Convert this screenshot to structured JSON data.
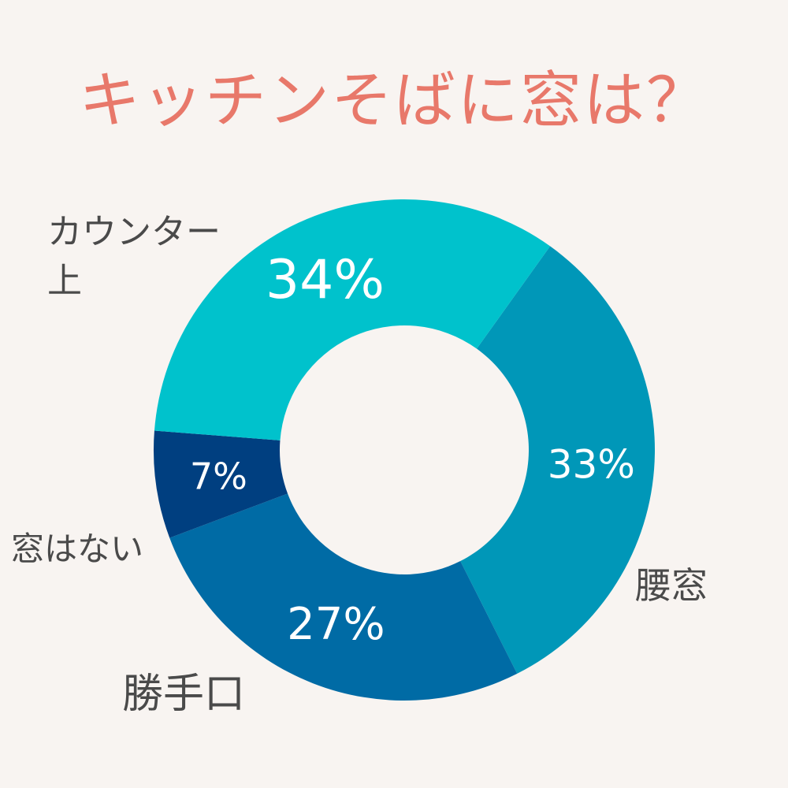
{
  "title": "キッチンそばに窓は？",
  "chart_data": {
    "type": "pie",
    "donut": true,
    "start": "top-right, clockwise",
    "slices": [
      {
        "label": "腰窓",
        "value": 33,
        "value_label": "33%",
        "color": "#0097b8"
      },
      {
        "label": "勝手口",
        "value": 27,
        "value_label": "27%",
        "color": "#006ba5"
      },
      {
        "label": "窓はない",
        "value": 7,
        "value_label": "7%",
        "color": "#003f80"
      },
      {
        "label": "カウンター\n上",
        "value": 34,
        "value_label": "34%",
        "color": "#00c2cc"
      }
    ]
  }
}
